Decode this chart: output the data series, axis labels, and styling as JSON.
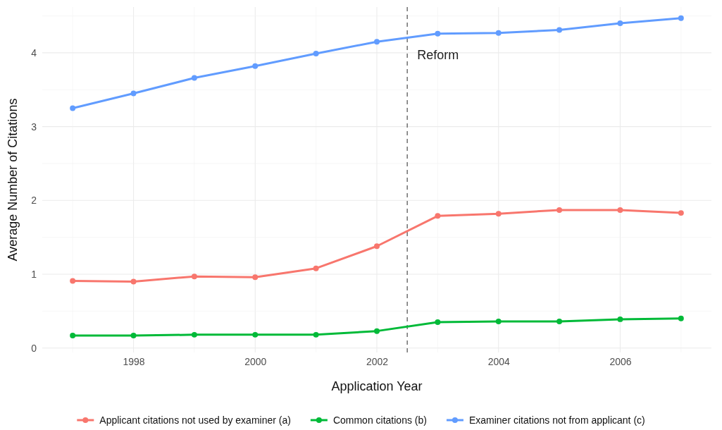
{
  "chart_data": {
    "type": "line",
    "xlabel": "Application Year",
    "ylabel": "Average Number of Citations",
    "x": [
      1997,
      1998,
      1999,
      2000,
      2001,
      2002,
      2003,
      2004,
      2005,
      2006,
      2007
    ],
    "series": [
      {
        "name": "Applicant citations not used by examiner (a)",
        "color": "#f8766d",
        "values": [
          0.91,
          0.9,
          0.97,
          0.96,
          1.08,
          1.38,
          1.79,
          1.82,
          1.87,
          1.87,
          1.83
        ]
      },
      {
        "name": "Common citations (b)",
        "color": "#00ba38",
        "values": [
          0.17,
          0.17,
          0.18,
          0.18,
          0.18,
          0.23,
          0.35,
          0.36,
          0.36,
          0.39,
          0.4
        ]
      },
      {
        "name": "Examiner citations not from applicant (c)",
        "color": "#619cff",
        "values": [
          3.25,
          3.45,
          3.66,
          3.82,
          3.99,
          4.15,
          4.26,
          4.27,
          4.31,
          4.4,
          4.47
        ]
      }
    ],
    "xlim": [
      1996.5,
      2007.5
    ],
    "xticks": [
      1998,
      2000,
      2002,
      2004,
      2006
    ],
    "ylim": [
      -0.06,
      4.62
    ],
    "yticks": [
      0,
      1,
      2,
      3,
      4
    ],
    "ref_lines": [
      {
        "axis": "x",
        "value": 2002.5,
        "label": "Reform",
        "color": "#707070",
        "line_style": "dashed"
      }
    ],
    "grid": true,
    "legend": "bottom",
    "marker": "circle",
    "line_style": "solid"
  }
}
